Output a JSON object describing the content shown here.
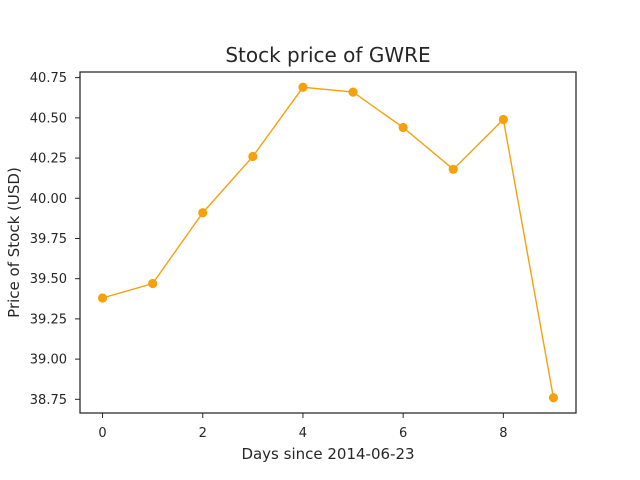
{
  "chart_data": {
    "type": "line",
    "title": "Stock price of GWRE",
    "xlabel": "Days since 2014-06-23",
    "ylabel": "Price of Stock (USD)",
    "x": [
      0,
      1,
      2,
      3,
      4,
      5,
      6,
      7,
      8,
      9
    ],
    "series": [
      {
        "values": [
          39.38,
          39.47,
          39.91,
          40.26,
          40.69,
          40.66,
          40.44,
          40.18,
          40.49,
          38.76
        ],
        "color": "#f5a10f"
      }
    ],
    "xlim": [
      -0.45,
      9.45
    ],
    "ylim": [
      38.665,
      40.785
    ],
    "x_ticks": [
      "0",
      "2",
      "4",
      "6",
      "8"
    ],
    "y_ticks": [
      "38.75",
      "39.00",
      "39.25",
      "39.50",
      "39.75",
      "40.00",
      "40.25",
      "40.50",
      "40.75"
    ],
    "grid": false,
    "legend": "none"
  }
}
